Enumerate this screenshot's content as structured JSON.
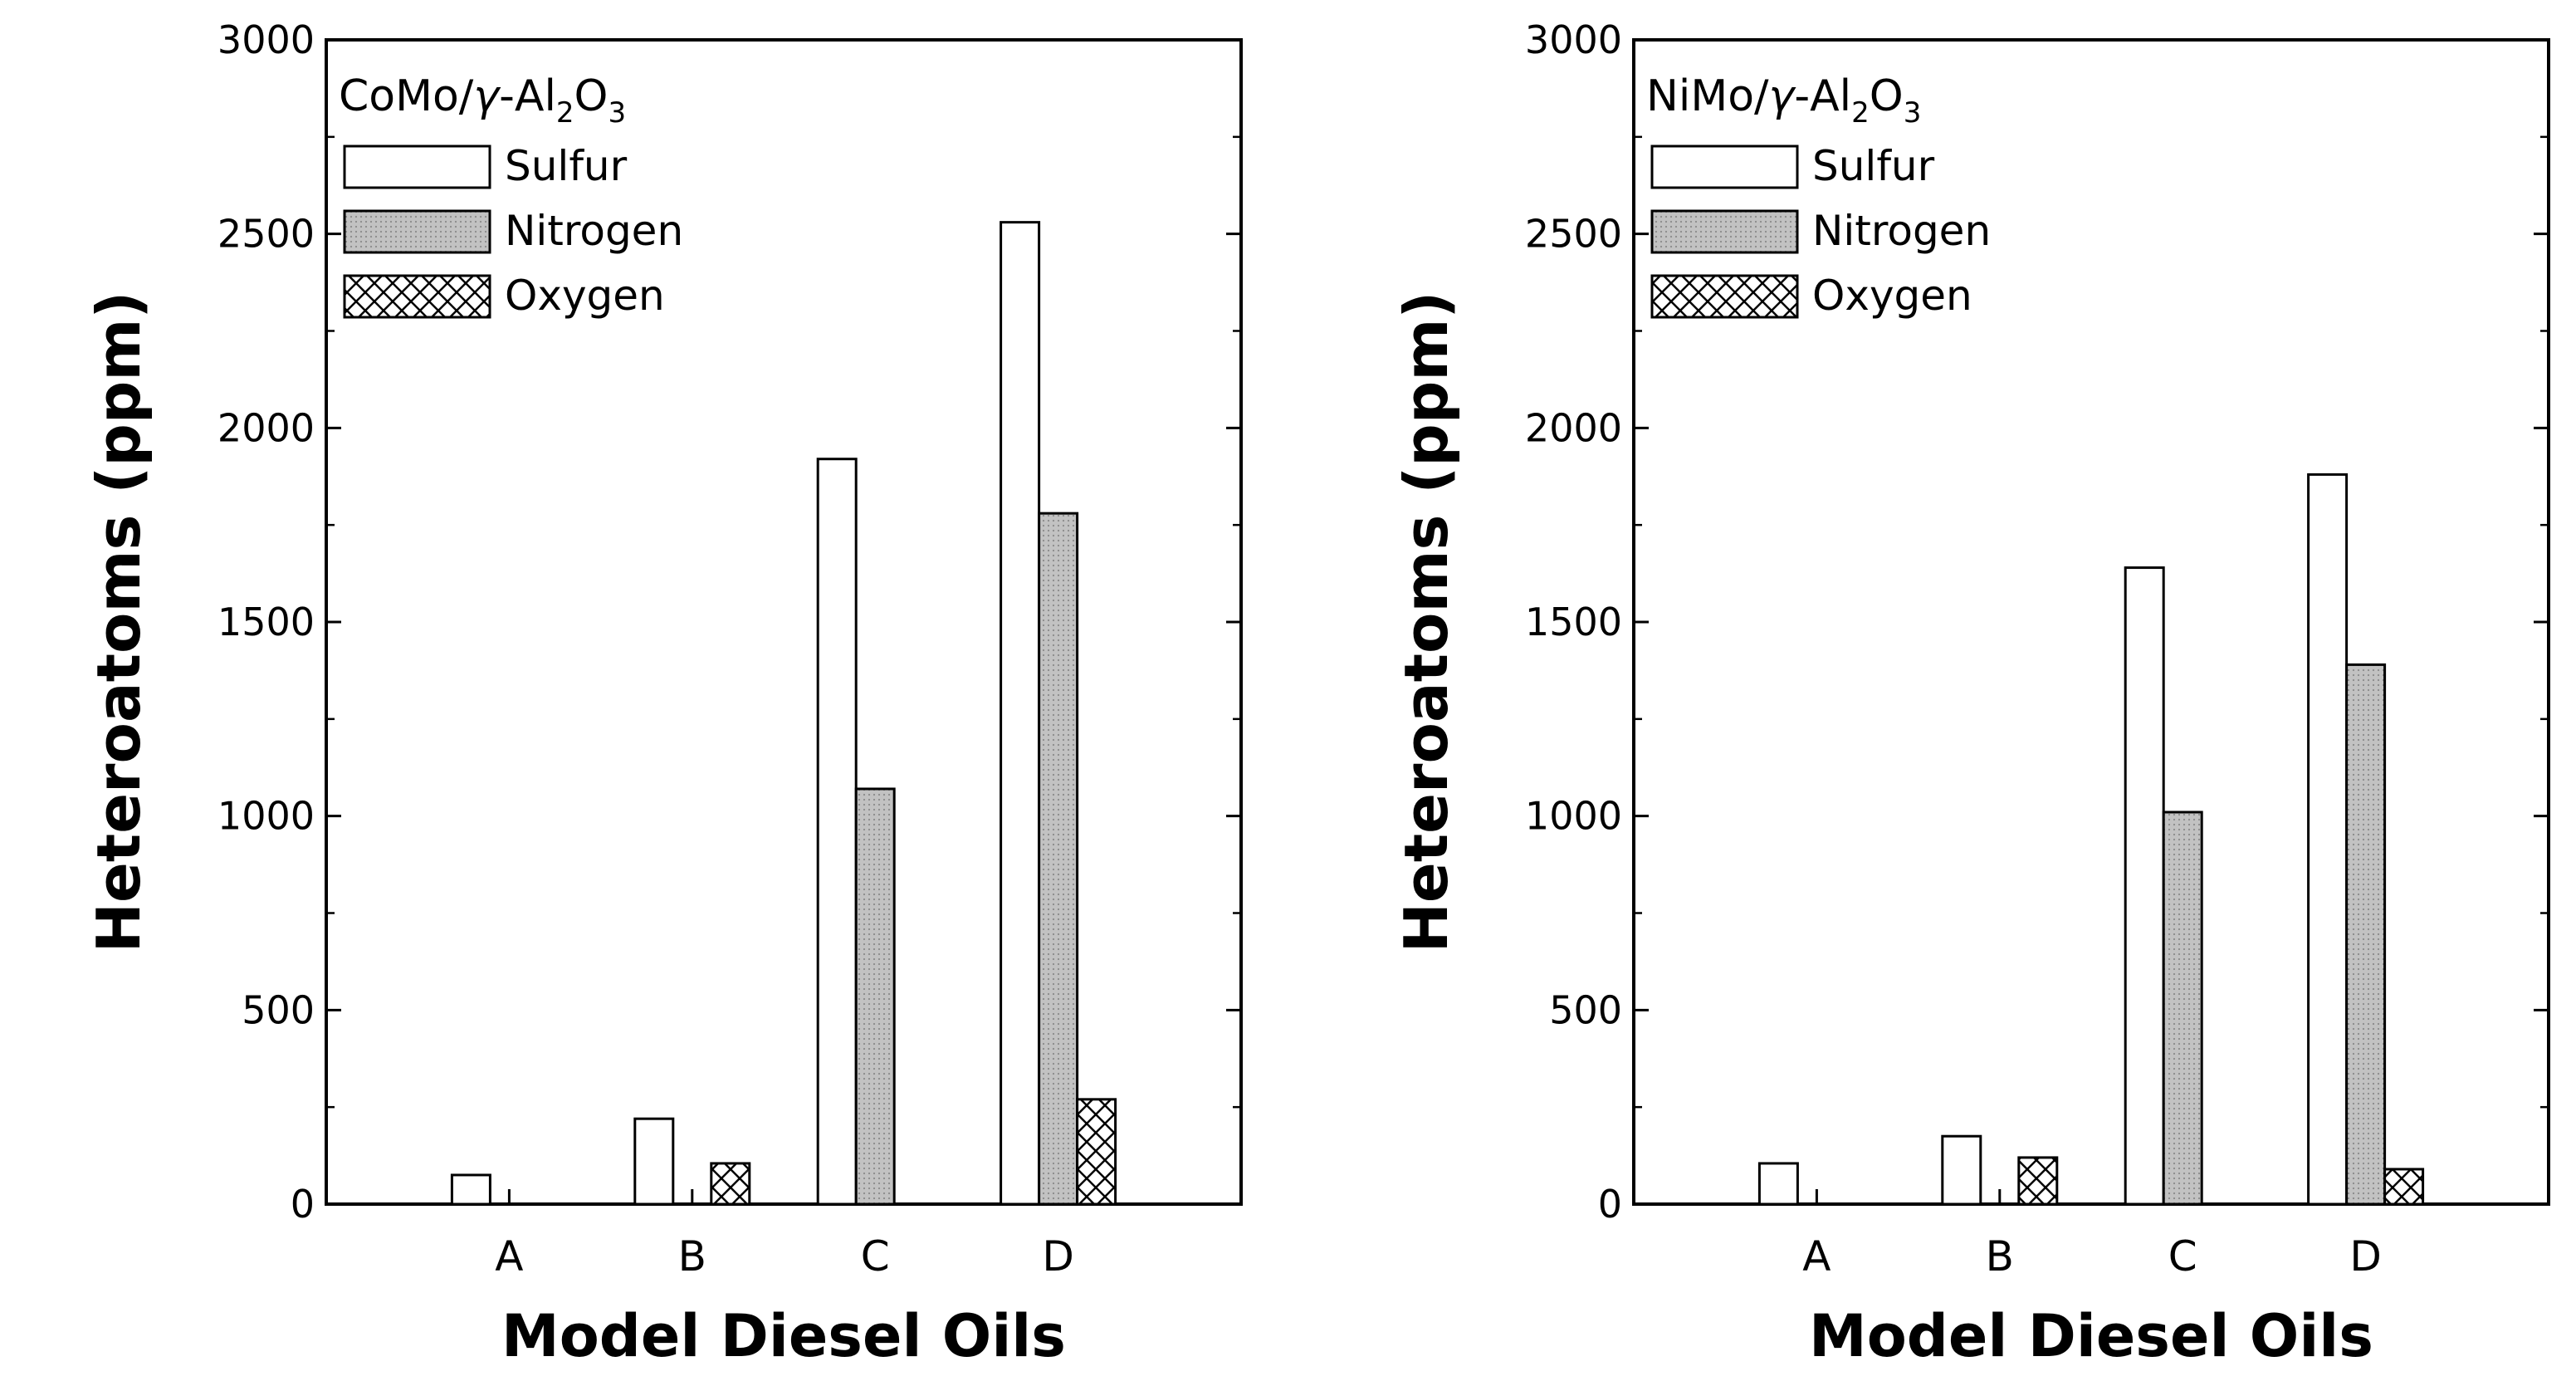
{
  "chart_data": [
    {
      "type": "bar",
      "title": "CoMo/γ-Al₂O₃",
      "title_parts": [
        "CoMo/",
        "γ",
        "-Al",
        "2",
        "O",
        "3"
      ],
      "xlabel": "Model Diesel Oils",
      "ylabel": "Heteroatoms (ppm)",
      "ylim": [
        0,
        3000
      ],
      "yticks": [
        0,
        500,
        1000,
        1500,
        2000,
        2500,
        3000
      ],
      "categories": [
        "A",
        "B",
        "C",
        "D"
      ],
      "legend_position": "top-left",
      "grid": false,
      "series": [
        {
          "name": "Sulfur",
          "values": [
            75,
            220,
            1920,
            2530
          ],
          "fill": "#ffffff",
          "pattern": "none"
        },
        {
          "name": "Nitrogen",
          "values": [
            0,
            0,
            1070,
            1780
          ],
          "fill": "#c0c0c0",
          "pattern": "dots"
        },
        {
          "name": "Oxygen",
          "values": [
            0,
            105,
            0,
            270
          ],
          "fill": "#ffffff",
          "pattern": "crosshatch"
        }
      ]
    },
    {
      "type": "bar",
      "title": "NiMo/γ-Al₂O₃",
      "title_parts": [
        "NiMo/",
        "γ",
        "-Al",
        "2",
        "O",
        "3"
      ],
      "xlabel": "Model Diesel Oils",
      "ylabel": "Heteroatoms (ppm)",
      "ylim": [
        0,
        3000
      ],
      "yticks": [
        0,
        500,
        1000,
        1500,
        2000,
        2500,
        3000
      ],
      "categories": [
        "A",
        "B",
        "C",
        "D"
      ],
      "legend_position": "top-left",
      "grid": false,
      "series": [
        {
          "name": "Sulfur",
          "values": [
            105,
            175,
            1640,
            1880
          ],
          "fill": "#ffffff",
          "pattern": "none"
        },
        {
          "name": "Nitrogen",
          "values": [
            0,
            0,
            1010,
            1390
          ],
          "fill": "#c0c0c0",
          "pattern": "dots"
        },
        {
          "name": "Oxygen",
          "values": [
            0,
            120,
            0,
            90
          ],
          "fill": "#ffffff",
          "pattern": "crosshatch"
        }
      ]
    }
  ]
}
